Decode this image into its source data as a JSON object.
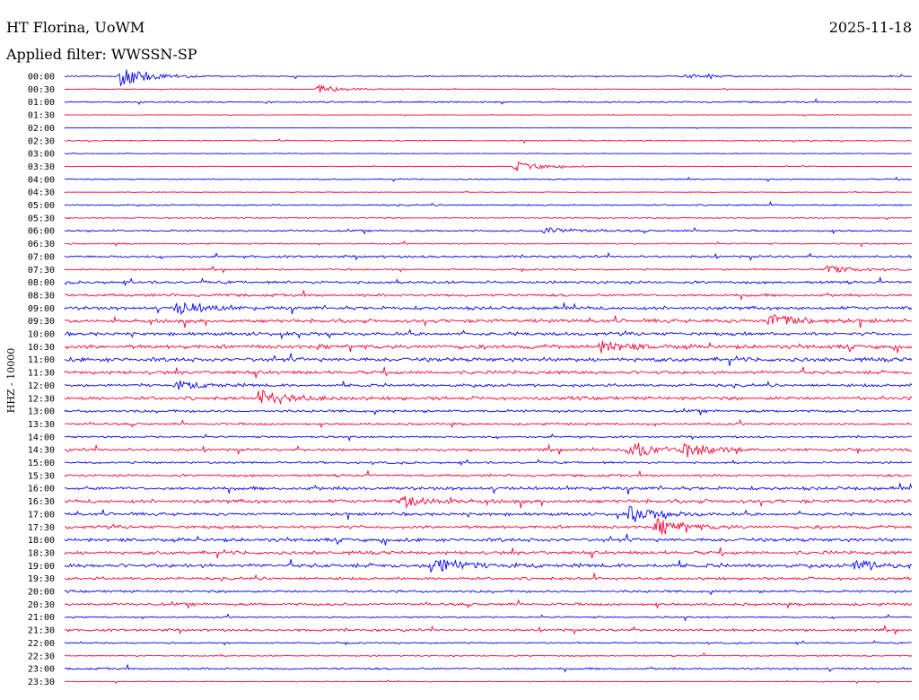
{
  "header": {
    "station": "HT Florina, UoWM",
    "date": "2025-11-18",
    "filter_text": "Applied filter: WWSSN-SP"
  },
  "chart_data": {
    "type": "line",
    "title": "HT Florina, UoWM",
    "subtitle": "Applied filter: WWSSN-SP",
    "date": "2025-11-18",
    "ylabel": "HHZ - 10000",
    "row_interval_minutes": 30,
    "row_labels": [
      "00:00",
      "00:30",
      "01:00",
      "01:30",
      "02:00",
      "02:30",
      "03:00",
      "03:30",
      "04:00",
      "04:30",
      "05:00",
      "05:30",
      "06:00",
      "06:30",
      "07:00",
      "07:30",
      "08:00",
      "08:30",
      "09:00",
      "09:30",
      "10:00",
      "10:30",
      "11:00",
      "11:30",
      "12:00",
      "12:30",
      "13:00",
      "13:30",
      "14:00",
      "14:30",
      "15:00",
      "15:30",
      "16:00",
      "16:30",
      "17:00",
      "17:30",
      "18:00",
      "18:30",
      "19:00",
      "19:30",
      "20:00",
      "20:30",
      "21:00",
      "21:30",
      "22:00",
      "22:30",
      "23:00",
      "23:30"
    ],
    "trace_colors": [
      "#0000ff",
      "#ff0033"
    ],
    "grid": false,
    "legend": "none",
    "noise_level": [
      0.8,
      0.5,
      1,
      0.4,
      0.3,
      0.7,
      0.4,
      0.5,
      0.8,
      0.4,
      1,
      0.8,
      1.2,
      0.9,
      1.5,
      1.1,
      1.8,
      1.8,
      2.2,
      2.4,
      2.2,
      2.6,
      2.6,
      2.2,
      1.9,
      2.3,
      1.7,
      1.5,
      1.2,
      1.8,
      1.4,
      1.6,
      2.2,
      2.4,
      2,
      2.1,
      2.3,
      2.2,
      2.5,
      1.8,
      1.6,
      1.7,
      1.1,
      1.6,
      1,
      0.9,
      1.3,
      0.6
    ],
    "events": [
      {
        "row": 0,
        "minute": 2,
        "amplitude": 12
      },
      {
        "row": 0,
        "minute": 22,
        "amplitude": 2
      },
      {
        "row": 1,
        "minute": 9,
        "amplitude": 4
      },
      {
        "row": 7,
        "minute": 16,
        "amplitude": 5
      },
      {
        "row": 12,
        "minute": 17,
        "amplitude": 4
      },
      {
        "row": 15,
        "minute": 27,
        "amplitude": 4
      },
      {
        "row": 18,
        "minute": 4,
        "amplitude": 7
      },
      {
        "row": 19,
        "minute": 25,
        "amplitude": 8
      },
      {
        "row": 21,
        "minute": 19,
        "amplitude": 6
      },
      {
        "row": 24,
        "minute": 4,
        "amplitude": 4
      },
      {
        "row": 25,
        "minute": 7,
        "amplitude": 8
      },
      {
        "row": 29,
        "minute": 20,
        "amplitude": 9
      },
      {
        "row": 29,
        "minute": 22,
        "amplitude": 7
      },
      {
        "row": 33,
        "minute": 12,
        "amplitude": 6
      },
      {
        "row": 34,
        "minute": 20,
        "amplitude": 8
      },
      {
        "row": 35,
        "minute": 21,
        "amplitude": 8
      },
      {
        "row": 38,
        "minute": 13,
        "amplitude": 10
      },
      {
        "row": 38,
        "minute": 28,
        "amplitude": 5
      }
    ]
  }
}
